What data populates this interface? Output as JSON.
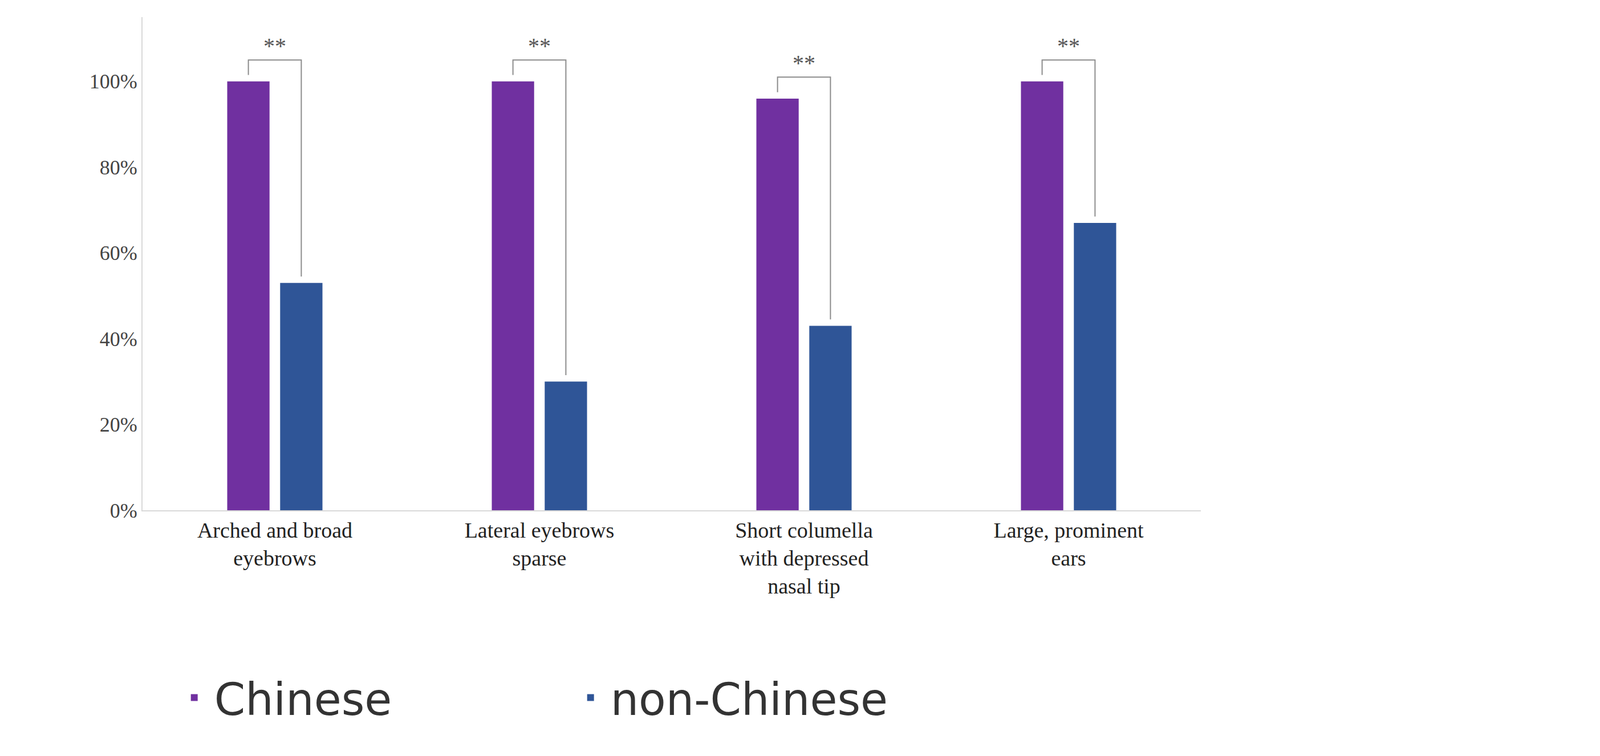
{
  "chart_data": {
    "type": "bar",
    "categories": [
      "Arched and broad eyebrows",
      "Lateral eyebrows sparse",
      "Short columella with depressed nasal tip",
      "Large, prominent ears"
    ],
    "series": [
      {
        "name": "Chinese",
        "color": "#7030a0",
        "values": [
          100,
          100,
          96,
          100
        ]
      },
      {
        "name": "non-Chinese",
        "color": "#2f5597",
        "values": [
          53,
          30,
          43,
          67
        ]
      }
    ],
    "ylim": [
      0,
      115
    ],
    "yticks": [
      {
        "value": 0,
        "label": "0%"
      },
      {
        "value": 20,
        "label": "20%"
      },
      {
        "value": 40,
        "label": "40%"
      },
      {
        "value": 60,
        "label": "60%"
      },
      {
        "value": 80,
        "label": "80%"
      },
      {
        "value": 100,
        "label": "100%"
      }
    ],
    "grid": false,
    "legend": "bottom",
    "annotations": [
      {
        "category": "Arched and broad eyebrows",
        "text": "**"
      },
      {
        "category": "Lateral eyebrows sparse",
        "text": "**"
      },
      {
        "category": "Short columella with depressed nasal tip",
        "text": "**"
      },
      {
        "category": "Large, prominent ears",
        "text": "**"
      }
    ]
  }
}
